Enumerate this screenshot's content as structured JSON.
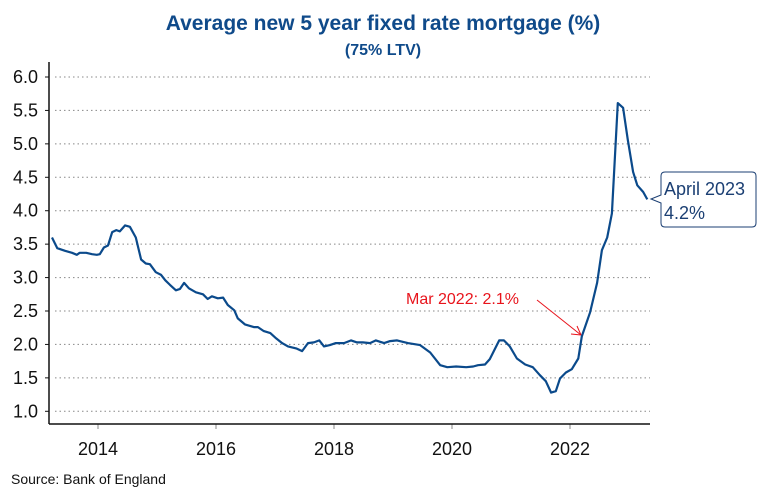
{
  "chart_data": {
    "type": "line",
    "title": "Average new 5 year fixed rate mortgage (%)",
    "subtitle": "(75% LTV)",
    "xlabel": "",
    "ylabel": "",
    "source": "Source: Bank of England",
    "xlim": [
      2013.17,
      2023.37
    ],
    "ylim": [
      0.81,
      6.0
    ],
    "grid": "horizontal dotted",
    "x_ticks": [
      2014,
      2016,
      2018,
      2020,
      2022
    ],
    "x_tick_labels": [
      "2014",
      "2016",
      "2018",
      "2020",
      "2022"
    ],
    "y_ticks": [
      1.0,
      1.5,
      2.0,
      2.5,
      3.0,
      3.5,
      4.0,
      4.5,
      5.0,
      5.5,
      6.0
    ],
    "y_tick_labels": [
      "1.0",
      "1.5",
      "2.0",
      "2.5",
      "3.0",
      "3.5",
      "4.0",
      "4.5",
      "5.0",
      "5.5",
      "6.0"
    ],
    "series": [
      {
        "name": "Average new 5 year fixed rate mortgage (75% LTV)",
        "color": "#0b4a8b",
        "x": [
          2013.22,
          2013.31,
          2013.44,
          2013.56,
          2013.64,
          2013.69,
          2013.8,
          2013.9,
          2013.98,
          2014.03,
          2014.1,
          2014.17,
          2014.24,
          2014.31,
          2014.37,
          2014.46,
          2014.54,
          2014.64,
          2014.73,
          2014.81,
          2014.88,
          2014.98,
          2015.07,
          2015.14,
          2015.22,
          2015.32,
          2015.39,
          2015.46,
          2015.54,
          2015.66,
          2015.78,
          2015.86,
          2015.93,
          2016.03,
          2016.12,
          2016.2,
          2016.31,
          2016.37,
          2016.49,
          2016.64,
          2016.71,
          2016.81,
          2016.92,
          2017.02,
          2017.12,
          2017.22,
          2017.36,
          2017.46,
          2017.56,
          2017.66,
          2017.75,
          2017.83,
          2017.93,
          2018.03,
          2018.17,
          2018.29,
          2018.39,
          2018.49,
          2018.61,
          2018.71,
          2018.85,
          2018.95,
          2019.07,
          2019.25,
          2019.46,
          2019.63,
          2019.8,
          2019.92,
          2020.07,
          2020.24,
          2020.36,
          2020.44,
          2020.56,
          2020.64,
          2020.8,
          2020.88,
          2020.98,
          2021.1,
          2021.24,
          2021.37,
          2021.49,
          2021.59,
          2021.68,
          2021.76,
          2021.83,
          2021.93,
          2022.03,
          2022.14,
          2022.2,
          2022.34,
          2022.46,
          2022.54,
          2022.63,
          2022.71,
          2022.81,
          2022.9,
          2022.98,
          2023.07,
          2023.14,
          2023.24,
          2023.31
        ],
        "y": [
          3.6,
          3.44,
          3.4,
          3.37,
          3.34,
          3.37,
          3.37,
          3.35,
          3.34,
          3.35,
          3.45,
          3.48,
          3.68,
          3.71,
          3.69,
          3.78,
          3.76,
          3.6,
          3.27,
          3.21,
          3.2,
          3.08,
          3.04,
          2.96,
          2.89,
          2.81,
          2.83,
          2.92,
          2.84,
          2.78,
          2.75,
          2.68,
          2.72,
          2.69,
          2.7,
          2.59,
          2.51,
          2.39,
          2.3,
          2.26,
          2.26,
          2.2,
          2.17,
          2.09,
          2.02,
          1.97,
          1.94,
          1.9,
          2.02,
          2.03,
          2.06,
          1.97,
          1.99,
          2.02,
          2.02,
          2.06,
          2.03,
          2.03,
          2.02,
          2.06,
          2.02,
          2.05,
          2.06,
          2.02,
          1.99,
          1.88,
          1.69,
          1.66,
          1.67,
          1.66,
          1.67,
          1.69,
          1.7,
          1.78,
          2.06,
          2.06,
          1.97,
          1.79,
          1.7,
          1.66,
          1.54,
          1.45,
          1.28,
          1.3,
          1.49,
          1.58,
          1.63,
          1.79,
          2.12,
          2.48,
          2.92,
          3.41,
          3.6,
          3.96,
          5.61,
          5.54,
          5.06,
          4.58,
          4.38,
          4.28,
          4.17
        ]
      }
    ],
    "annotations": [
      {
        "text": "Mar 2022: 2.1%",
        "x": 2022.2,
        "y": 2.12,
        "color": "#e8141c"
      },
      {
        "line1": "April 2023",
        "line2": "4.2%",
        "x": 2023.31,
        "y": 4.17,
        "color": "#1b3f73"
      }
    ]
  }
}
